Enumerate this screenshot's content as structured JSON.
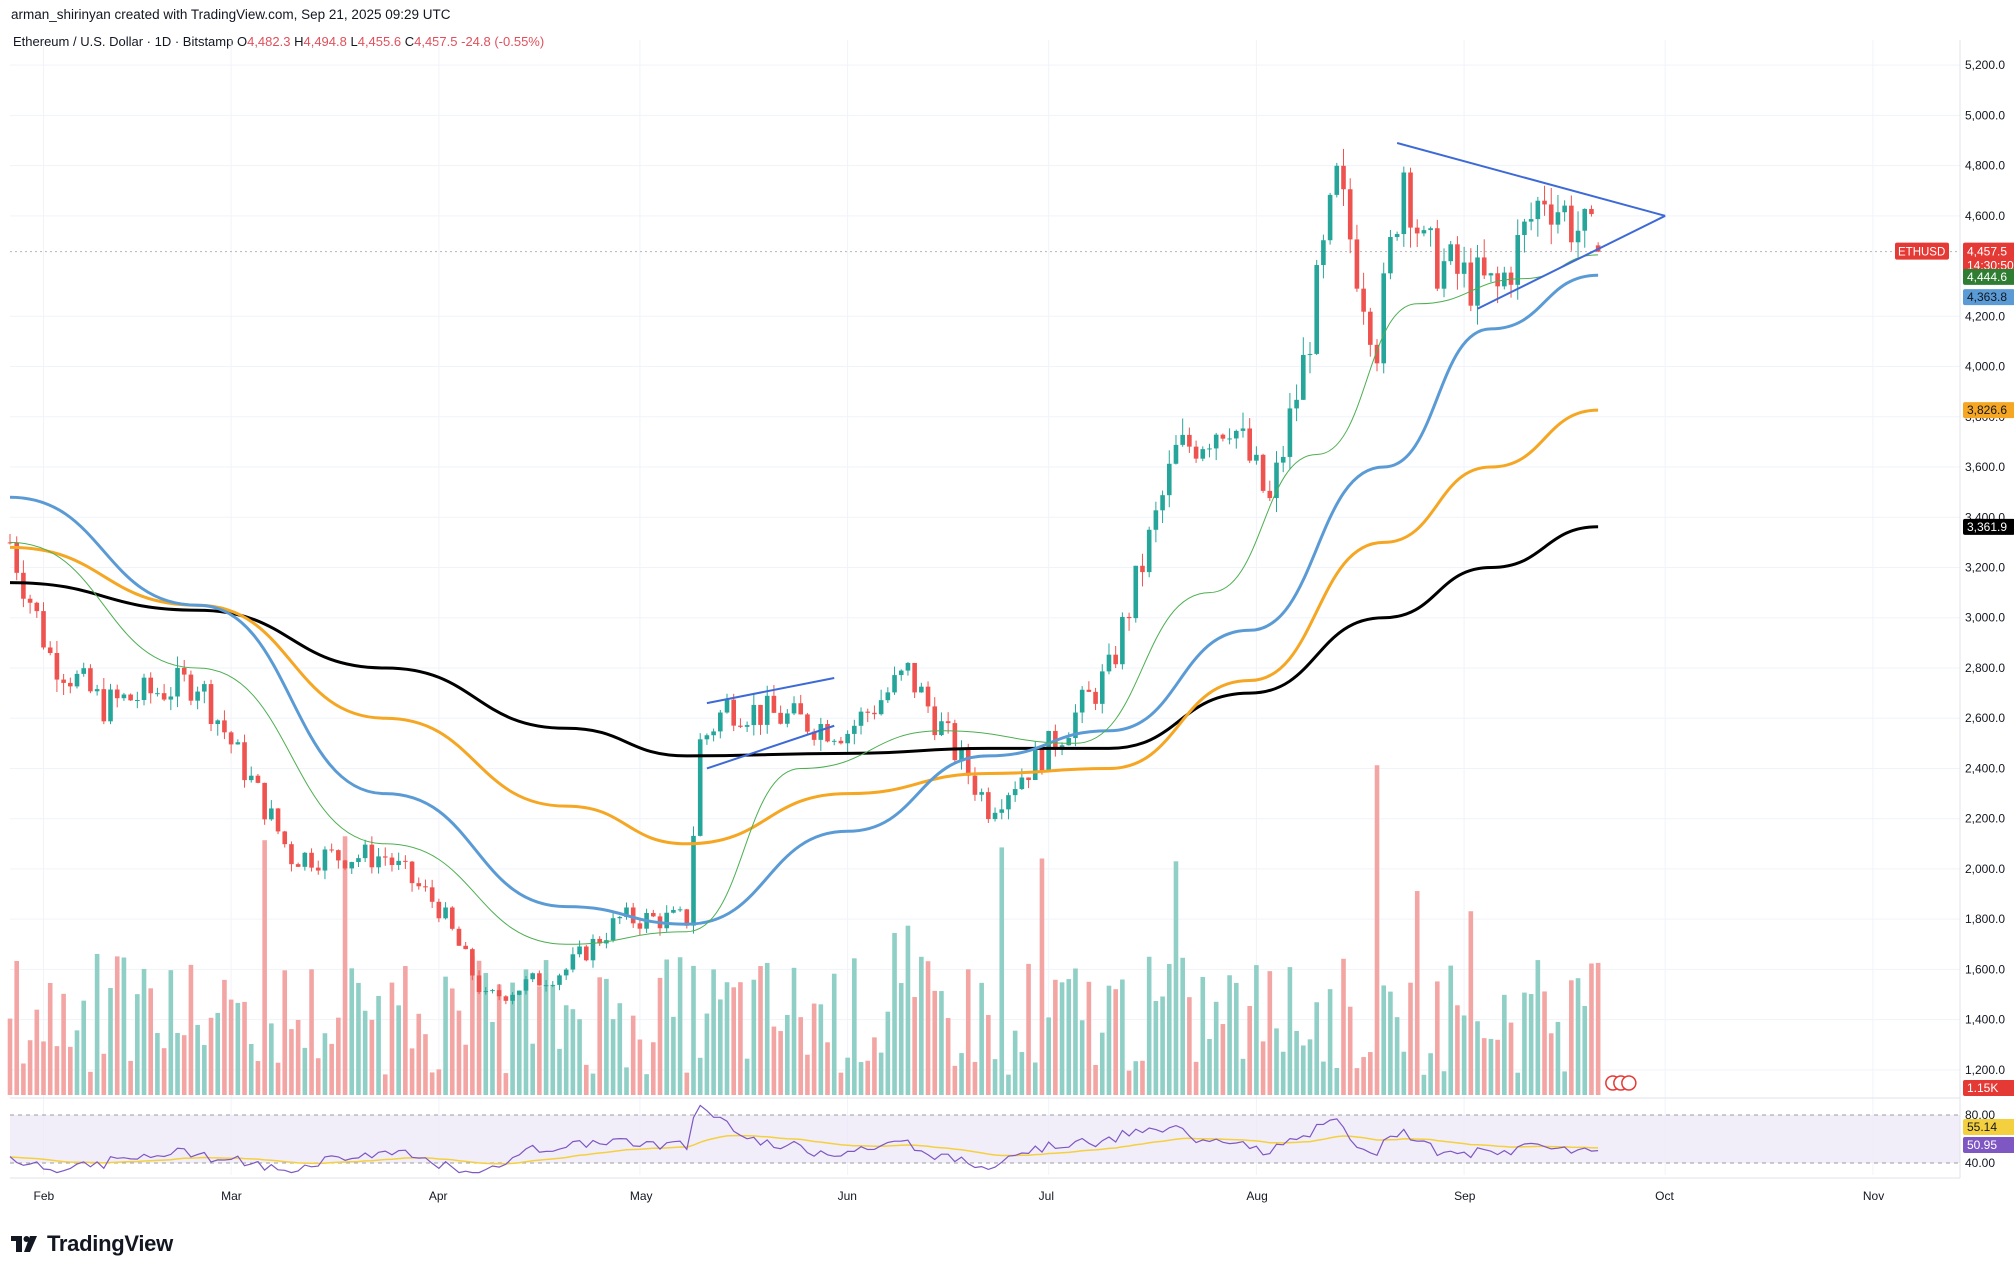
{
  "header": {
    "credit": "arman_shirinyan created with TradingView.com, Sep 21, 2025 09:29 UTC"
  },
  "symbol": {
    "name": "Ethereum / U.S. Dollar · 1D · Bitstamp",
    "open_label": "O",
    "open": "4,482.3",
    "high_label": "H",
    "high": "4,494.8",
    "low_label": "L",
    "low": "4,455.6",
    "close_label": "C",
    "close": "4,457.5",
    "change": "-24.8 (-0.55%)"
  },
  "price_axis": {
    "ticks": [
      "5,200.0",
      "5,000.0",
      "4,800.0",
      "4,600.0",
      "4,200.0",
      "4,000.0",
      "3,800.0",
      "3,600.0",
      "3,400.0",
      "3,200.0",
      "3,000.0",
      "2,800.0",
      "2,600.0",
      "2,400.0",
      "2,200.0",
      "2,000.0",
      "1,800.0",
      "1,600.0",
      "1,400.0",
      "1,200.0"
    ]
  },
  "price_labels": {
    "symbol_tag": "ETHUSD",
    "last_price": "4,457.5",
    "countdown": "14:30:50",
    "sma20": "4,444.6",
    "sma50": "4,363.8",
    "sma100": "3,826.6",
    "sma200": "3,361.9",
    "volume": "1.15K"
  },
  "rsi_axis": {
    "upper": "80.00",
    "lower": "40.00",
    "ma_value": "55.14",
    "rsi_value": "50.95"
  },
  "time_axis": [
    "Feb",
    "Mar",
    "Apr",
    "May",
    "Jun",
    "Jul",
    "Aug",
    "Sep",
    "Oct",
    "Nov"
  ],
  "brand": "TradingView",
  "colors": {
    "up": "#26a69a",
    "down": "#ef5350",
    "vol_up": "#8fcfc6",
    "vol_down": "#f3a5a4",
    "sma20": "#4caf50",
    "sma50": "#5b9bd5",
    "sma100": "#f5a623",
    "sma200": "#000000",
    "trendline": "#3d6ad6",
    "rsi_line": "#7e57c2",
    "rsi_ma": "#f4d03f"
  },
  "chart_data": {
    "type": "candlestick",
    "title": "Ethereum / U.S. Dollar · 1D · Bitstamp",
    "y_range": [
      1100,
      5300
    ],
    "y_scale": "linear",
    "x_range": [
      "2025-01-27",
      "2025-11-14"
    ],
    "grid": true,
    "candles_note_points": [
      {
        "date": "2025-01-27",
        "price": 3300
      },
      {
        "date": "2025-02-02",
        "price": 2850
      },
      {
        "date": "2025-02-10",
        "price": 2650
      },
      {
        "date": "2025-02-24",
        "price": 2750
      },
      {
        "date": "2025-03-03",
        "price": 2400
      },
      {
        "date": "2025-03-10",
        "price": 2050
      },
      {
        "date": "2025-03-24",
        "price": 2050
      },
      {
        "date": "2025-04-01",
        "price": 1850
      },
      {
        "date": "2025-04-08",
        "price": 1480
      },
      {
        "date": "2025-04-20",
        "price": 1600
      },
      {
        "date": "2025-04-28",
        "price": 1800
      },
      {
        "date": "2025-05-08",
        "price": 1800
      },
      {
        "date": "2025-05-10",
        "price": 2500
      },
      {
        "date": "2025-05-14",
        "price": 2650
      },
      {
        "date": "2025-06-01",
        "price": 2550
      },
      {
        "date": "2025-06-10",
        "price": 2780
      },
      {
        "date": "2025-06-22",
        "price": 2250
      },
      {
        "date": "2025-07-01",
        "price": 2480
      },
      {
        "date": "2025-07-10",
        "price": 2780
      },
      {
        "date": "2025-07-20",
        "price": 3650
      },
      {
        "date": "2025-07-28",
        "price": 3800
      },
      {
        "date": "2025-08-03",
        "price": 3450
      },
      {
        "date": "2025-08-08",
        "price": 4000
      },
      {
        "date": "2025-08-13",
        "price": 4720
      },
      {
        "date": "2025-08-19",
        "price": 4100
      },
      {
        "date": "2025-08-23",
        "price": 4800
      },
      {
        "date": "2025-08-26",
        "price": 4450
      },
      {
        "date": "2025-09-01",
        "price": 4350
      },
      {
        "date": "2025-09-06",
        "price": 4300
      },
      {
        "date": "2025-09-13",
        "price": 4700
      },
      {
        "date": "2025-09-21",
        "price": 4457.5
      }
    ],
    "sma20": [
      {
        "date": "2025-01-27",
        "price": 3300
      },
      {
        "date": "2025-02-24",
        "price": 2800
      },
      {
        "date": "2025-03-24",
        "price": 2100
      },
      {
        "date": "2025-04-20",
        "price": 1700
      },
      {
        "date": "2025-05-08",
        "price": 1750
      },
      {
        "date": "2025-05-25",
        "price": 2400
      },
      {
        "date": "2025-06-15",
        "price": 2550
      },
      {
        "date": "2025-07-05",
        "price": 2500
      },
      {
        "date": "2025-07-25",
        "price": 3100
      },
      {
        "date": "2025-08-10",
        "price": 3650
      },
      {
        "date": "2025-08-25",
        "price": 4250
      },
      {
        "date": "2025-09-10",
        "price": 4350
      },
      {
        "date": "2025-09-21",
        "price": 4444.6
      }
    ],
    "sma50": [
      {
        "date": "2025-01-27",
        "price": 3480
      },
      {
        "date": "2025-02-24",
        "price": 3050
      },
      {
        "date": "2025-03-24",
        "price": 2300
      },
      {
        "date": "2025-04-20",
        "price": 1850
      },
      {
        "date": "2025-05-08",
        "price": 1780
      },
      {
        "date": "2025-06-01",
        "price": 2150
      },
      {
        "date": "2025-06-22",
        "price": 2450
      },
      {
        "date": "2025-07-10",
        "price": 2550
      },
      {
        "date": "2025-07-31",
        "price": 2950
      },
      {
        "date": "2025-08-20",
        "price": 3600
      },
      {
        "date": "2025-09-05",
        "price": 4150
      },
      {
        "date": "2025-09-21",
        "price": 4363.8
      }
    ],
    "sma100": [
      {
        "date": "2025-01-27",
        "price": 3280
      },
      {
        "date": "2025-02-24",
        "price": 3050
      },
      {
        "date": "2025-03-24",
        "price": 2600
      },
      {
        "date": "2025-04-20",
        "price": 2250
      },
      {
        "date": "2025-05-08",
        "price": 2100
      },
      {
        "date": "2025-06-01",
        "price": 2300
      },
      {
        "date": "2025-06-22",
        "price": 2380
      },
      {
        "date": "2025-07-10",
        "price": 2400
      },
      {
        "date": "2025-07-31",
        "price": 2750
      },
      {
        "date": "2025-08-20",
        "price": 3300
      },
      {
        "date": "2025-09-05",
        "price": 3600
      },
      {
        "date": "2025-09-21",
        "price": 3826.6
      }
    ],
    "sma200": [
      {
        "date": "2025-01-27",
        "price": 3140
      },
      {
        "date": "2025-02-24",
        "price": 3030
      },
      {
        "date": "2025-03-24",
        "price": 2800
      },
      {
        "date": "2025-04-20",
        "price": 2560
      },
      {
        "date": "2025-05-08",
        "price": 2450
      },
      {
        "date": "2025-06-01",
        "price": 2460
      },
      {
        "date": "2025-06-22",
        "price": 2480
      },
      {
        "date": "2025-07-10",
        "price": 2480
      },
      {
        "date": "2025-07-31",
        "price": 2700
      },
      {
        "date": "2025-08-20",
        "price": 3000
      },
      {
        "date": "2025-09-05",
        "price": 3200
      },
      {
        "date": "2025-09-21",
        "price": 3361.9
      }
    ]
  }
}
